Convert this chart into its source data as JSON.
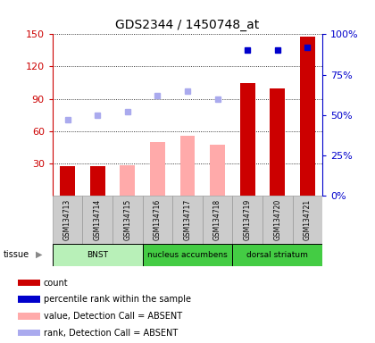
{
  "title": "GDS2344 / 1450748_at",
  "samples": [
    "GSM134713",
    "GSM134714",
    "GSM134715",
    "GSM134716",
    "GSM134717",
    "GSM134718",
    "GSM134719",
    "GSM134720",
    "GSM134721"
  ],
  "tissue_groups": [
    {
      "label": "BNST",
      "start": 0,
      "end": 3
    },
    {
      "label": "nucleus accumbens",
      "start": 3,
      "end": 6
    },
    {
      "label": "dorsal striatum",
      "start": 6,
      "end": 9
    }
  ],
  "tissue_colors": [
    "#b8f0b8",
    "#44cc44",
    "#44cc44"
  ],
  "count_values": [
    27,
    27,
    27,
    null,
    null,
    null,
    105,
    100,
    148
  ],
  "rank_present": [
    null,
    null,
    null,
    null,
    null,
    null,
    90,
    90,
    92
  ],
  "value_absent": [
    null,
    null,
    28,
    50,
    56,
    47,
    null,
    null,
    null
  ],
  "rank_absent": [
    47,
    50,
    52,
    62,
    65,
    60,
    null,
    null,
    null
  ],
  "ylim_left": [
    0,
    150
  ],
  "ylim_right": [
    0,
    100
  ],
  "yticks_left": [
    30,
    60,
    90,
    120,
    150
  ],
  "yticks_right": [
    0,
    25,
    50,
    75,
    100
  ],
  "yticklabels_right": [
    "0%",
    "25%",
    "50%",
    "75%",
    "100%"
  ],
  "bar_width": 0.5,
  "count_color": "#cc0000",
  "rank_present_color": "#0000cc",
  "value_absent_color": "#ffaaaa",
  "rank_absent_color": "#aaaaee",
  "grid_color": "#555555",
  "left_tick_color": "#cc0000",
  "right_tick_color": "#0000cc",
  "sample_box_color": "#cccccc",
  "legend_items": [
    {
      "color": "#cc0000",
      "label": "count"
    },
    {
      "color": "#0000cc",
      "label": "percentile rank within the sample"
    },
    {
      "color": "#ffaaaa",
      "label": "value, Detection Call = ABSENT"
    },
    {
      "color": "#aaaaee",
      "label": "rank, Detection Call = ABSENT"
    }
  ]
}
